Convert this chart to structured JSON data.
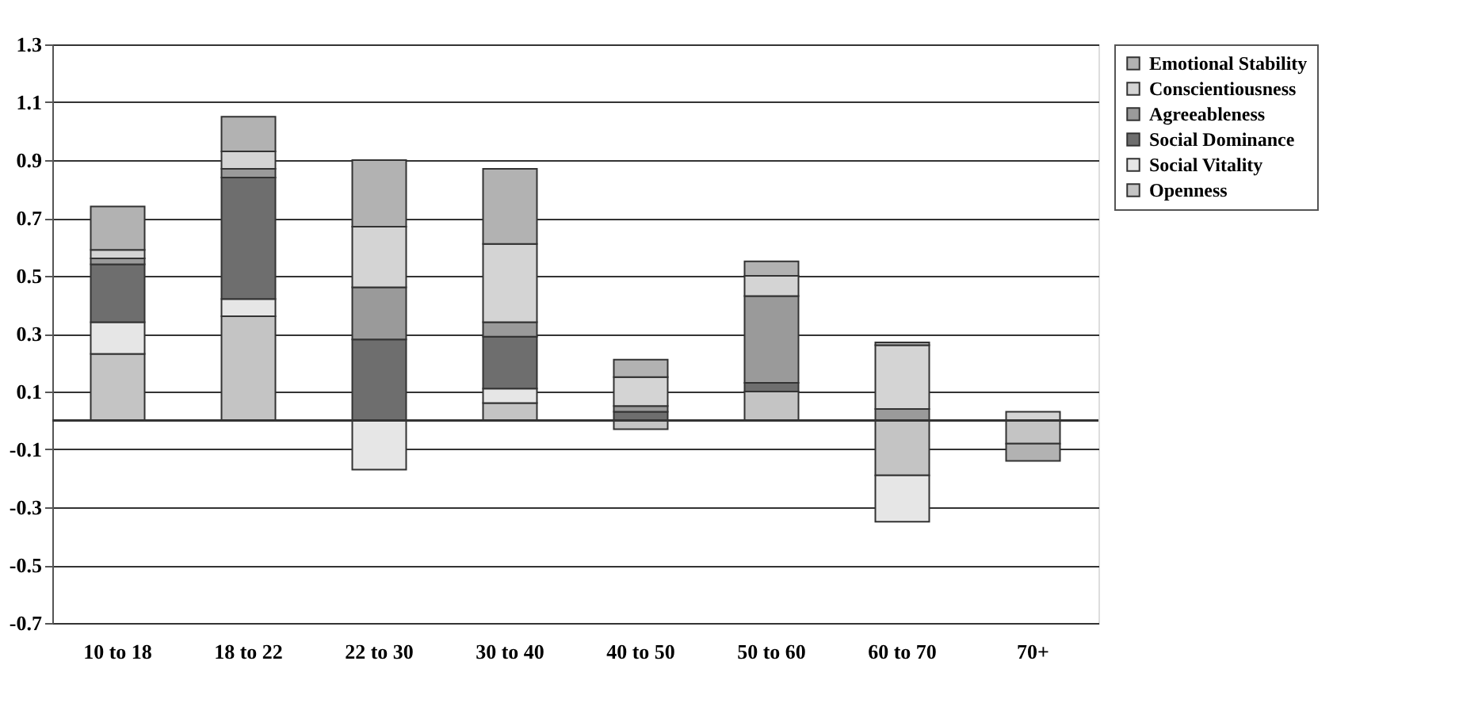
{
  "chart_data": {
    "type": "bar",
    "stacked": true,
    "categories": [
      "10 to 18",
      "18 to 22",
      "22 to 30",
      "30 to 40",
      "40 to 50",
      "50 to 60",
      "60 to 70",
      "70+"
    ],
    "series": [
      {
        "name": "Openness",
        "color": "#c4c4c4",
        "values": [
          0.23,
          0.36,
          null,
          0.06,
          -0.03,
          0.1,
          -0.19,
          -0.08
        ]
      },
      {
        "name": "Social Vitality",
        "color": "#e6e6e6",
        "values": [
          0.11,
          0.06,
          -0.17,
          0.05,
          0,
          0,
          -0.16,
          0
        ]
      },
      {
        "name": "Social Dominance",
        "color": "#6e6e6e",
        "values": [
          0.2,
          0.42,
          0.28,
          0.18,
          0.03,
          0.03,
          0,
          0
        ]
      },
      {
        "name": "Agreeableness",
        "color": "#9a9a9a",
        "values": [
          0.02,
          0.03,
          0.18,
          0.05,
          0.02,
          0.3,
          0.04,
          0
        ]
      },
      {
        "name": "Conscientiousness",
        "color": "#d4d4d4",
        "values": [
          0.03,
          0.06,
          0.21,
          0.27,
          0.1,
          0.07,
          0.22,
          0.03
        ]
      },
      {
        "name": "Emotional Stability",
        "color": "#b2b2b2",
        "values": [
          0.15,
          0.12,
          0.23,
          0.26,
          0.06,
          0.05,
          0.01,
          -0.06
        ]
      }
    ],
    "ylim": [
      -0.7,
      1.3
    ],
    "yticks": [
      -0.7,
      -0.5,
      -0.3,
      -0.1,
      0.1,
      0.3,
      0.5,
      0.7,
      0.9,
      1.1,
      1.3
    ],
    "ref_lines": [
      {
        "axis": "y",
        "value": 0
      }
    ],
    "grid": "y",
    "legend": "right"
  }
}
